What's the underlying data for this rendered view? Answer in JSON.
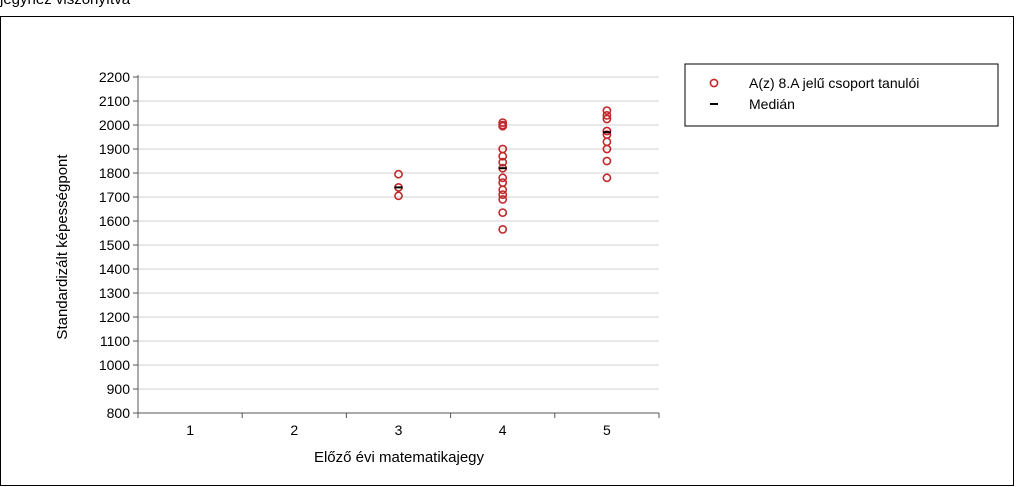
{
  "page": {
    "top_text": "jegyhez viszonyítva"
  },
  "chart_data": {
    "type": "scatter",
    "xlabel": "Előző évi matematikajegy",
    "ylabel": "Standardizált képességpont",
    "categories": [
      "1",
      "2",
      "3",
      "4",
      "5"
    ],
    "ylim": [
      800,
      2200
    ],
    "y_ticks": [
      800,
      900,
      1000,
      1100,
      1200,
      1300,
      1400,
      1500,
      1600,
      1700,
      1800,
      1900,
      2000,
      2100,
      2200
    ],
    "grid": true,
    "legend_position": "top-right",
    "series": [
      {
        "name": "A(z) 8.A jelű csoport tanulói",
        "marker": "circle-open",
        "color": "#c0282b",
        "points": [
          {
            "x": "3",
            "y": 1795
          },
          {
            "x": "3",
            "y": 1740
          },
          {
            "x": "3",
            "y": 1705
          },
          {
            "x": "4",
            "y": 2010
          },
          {
            "x": "4",
            "y": 2000
          },
          {
            "x": "4",
            "y": 1995
          },
          {
            "x": "4",
            "y": 1900
          },
          {
            "x": "4",
            "y": 1870
          },
          {
            "x": "4",
            "y": 1845
          },
          {
            "x": "4",
            "y": 1820
          },
          {
            "x": "4",
            "y": 1780
          },
          {
            "x": "4",
            "y": 1760
          },
          {
            "x": "4",
            "y": 1730
          },
          {
            "x": "4",
            "y": 1710
          },
          {
            "x": "4",
            "y": 1690
          },
          {
            "x": "4",
            "y": 1635
          },
          {
            "x": "4",
            "y": 1565
          },
          {
            "x": "5",
            "y": 2060
          },
          {
            "x": "5",
            "y": 2040
          },
          {
            "x": "5",
            "y": 2025
          },
          {
            "x": "5",
            "y": 1975
          },
          {
            "x": "5",
            "y": 1960
          },
          {
            "x": "5",
            "y": 1930
          },
          {
            "x": "5",
            "y": 1900
          },
          {
            "x": "5",
            "y": 1850
          },
          {
            "x": "5",
            "y": 1780
          }
        ]
      },
      {
        "name": "Medián",
        "marker": "dash",
        "color": "#000000",
        "points": [
          {
            "x": "3",
            "y": 1740
          },
          {
            "x": "4",
            "y": 1820
          },
          {
            "x": "5",
            "y": 1970
          }
        ]
      }
    ]
  }
}
